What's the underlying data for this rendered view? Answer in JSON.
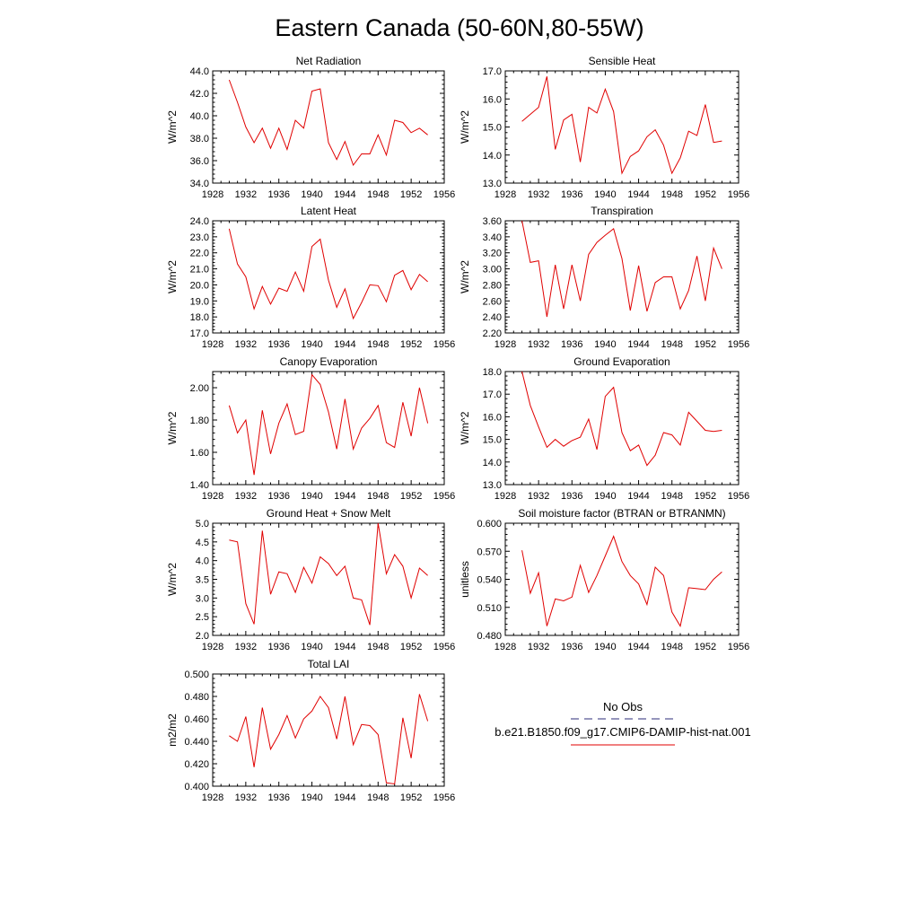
{
  "figure_title": "Eastern Canada (50-60N,80-55W)",
  "legend": {
    "entries": [
      {
        "label": "No Obs",
        "color": "#2b2b7a",
        "style": "dashed"
      },
      {
        "label": "b.e21.B1850.f09_g17.CMIP6-DAMIP-hist-nat.001",
        "color": "#e00000",
        "style": "solid"
      }
    ]
  },
  "chart_data": [
    {
      "type": "line",
      "title": "Net Radiation",
      "ylabel": "W/m^2",
      "xlim": [
        1928,
        1956
      ],
      "xticks": [
        1928,
        1932,
        1936,
        1940,
        1944,
        1948,
        1952,
        1956
      ],
      "ylim": [
        34,
        44
      ],
      "yticks": [
        34,
        36,
        38,
        40,
        42,
        44
      ],
      "ydecimals": 1,
      "series": [
        {
          "color": "#e00000",
          "x": [
            1930,
            1931,
            1932,
            1933,
            1934,
            1935,
            1936,
            1937,
            1938,
            1939,
            1940,
            1941,
            1942,
            1943,
            1944,
            1945,
            1946,
            1947,
            1948,
            1949,
            1950,
            1951,
            1952,
            1953,
            1954
          ],
          "values": [
            43.2,
            41.2,
            39.0,
            37.6,
            38.9,
            37.1,
            38.9,
            37.0,
            39.6,
            38.9,
            42.2,
            42.4,
            37.6,
            36.1,
            37.7,
            35.6,
            36.6,
            36.6,
            38.3,
            36.5,
            39.6,
            39.4,
            38.5,
            38.9,
            38.3
          ]
        }
      ]
    },
    {
      "type": "line",
      "title": "Sensible Heat",
      "ylabel": "W/m^2",
      "xlim": [
        1928,
        1956
      ],
      "xticks": [
        1928,
        1932,
        1936,
        1940,
        1944,
        1948,
        1952,
        1956
      ],
      "ylim": [
        13,
        17
      ],
      "yticks": [
        13,
        14,
        15,
        16,
        17
      ],
      "ydecimals": 1,
      "series": [
        {
          "color": "#e00000",
          "x": [
            1930,
            1931,
            1932,
            1933,
            1934,
            1935,
            1936,
            1937,
            1938,
            1939,
            1940,
            1941,
            1942,
            1943,
            1944,
            1945,
            1946,
            1947,
            1948,
            1949,
            1950,
            1951,
            1952,
            1953,
            1954
          ],
          "values": [
            15.2,
            15.45,
            15.7,
            16.8,
            14.2,
            15.25,
            15.45,
            13.75,
            15.7,
            15.5,
            16.35,
            15.55,
            13.35,
            13.95,
            14.15,
            14.65,
            14.9,
            14.35,
            13.35,
            13.9,
            14.85,
            14.7,
            15.8,
            14.45,
            14.5
          ]
        }
      ]
    },
    {
      "type": "line",
      "title": "Latent Heat",
      "ylabel": "W/m^2",
      "xlim": [
        1928,
        1956
      ],
      "xticks": [
        1928,
        1932,
        1936,
        1940,
        1944,
        1948,
        1952,
        1956
      ],
      "ylim": [
        17,
        24
      ],
      "yticks": [
        17,
        18,
        19,
        20,
        21,
        22,
        23,
        24
      ],
      "ydecimals": 1,
      "series": [
        {
          "color": "#e00000",
          "x": [
            1930,
            1931,
            1932,
            1933,
            1934,
            1935,
            1936,
            1937,
            1938,
            1939,
            1940,
            1941,
            1942,
            1943,
            1944,
            1945,
            1946,
            1947,
            1948,
            1949,
            1950,
            1951,
            1952,
            1953,
            1954
          ],
          "values": [
            23.5,
            21.3,
            20.5,
            18.5,
            19.9,
            18.8,
            19.8,
            19.6,
            20.8,
            19.6,
            22.4,
            22.85,
            20.3,
            18.6,
            19.75,
            17.9,
            18.9,
            20.0,
            19.95,
            18.95,
            20.6,
            20.9,
            19.7,
            20.65,
            20.2
          ]
        }
      ]
    },
    {
      "type": "line",
      "title": "Transpiration",
      "ylabel": "W/m^2",
      "xlim": [
        1928,
        1956
      ],
      "xticks": [
        1928,
        1932,
        1936,
        1940,
        1944,
        1948,
        1952,
        1956
      ],
      "ylim": [
        2.2,
        3.6
      ],
      "yticks": [
        2.2,
        2.4,
        2.6,
        2.8,
        3.0,
        3.2,
        3.4,
        3.6
      ],
      "ydecimals": 2,
      "series": [
        {
          "color": "#e00000",
          "x": [
            1930,
            1931,
            1932,
            1933,
            1934,
            1935,
            1936,
            1937,
            1938,
            1939,
            1940,
            1941,
            1942,
            1943,
            1944,
            1945,
            1946,
            1947,
            1948,
            1949,
            1950,
            1951,
            1952,
            1953,
            1954
          ],
          "values": [
            3.6,
            3.08,
            3.1,
            2.4,
            3.05,
            2.5,
            3.05,
            2.6,
            3.18,
            3.33,
            3.42,
            3.5,
            3.13,
            2.48,
            3.04,
            2.47,
            2.83,
            2.9,
            2.9,
            2.5,
            2.73,
            3.16,
            2.6,
            3.26,
            3.0
          ]
        }
      ]
    },
    {
      "type": "line",
      "title": "Canopy Evaporation",
      "ylabel": "W/m^2",
      "xlim": [
        1928,
        1956
      ],
      "xticks": [
        1928,
        1932,
        1936,
        1940,
        1944,
        1948,
        1952,
        1956
      ],
      "ylim": [
        1.4,
        2.1
      ],
      "yticks": [
        1.4,
        1.6,
        1.8,
        2.0
      ],
      "ydecimals": 2,
      "series": [
        {
          "color": "#e00000",
          "x": [
            1930,
            1931,
            1932,
            1933,
            1934,
            1935,
            1936,
            1937,
            1938,
            1939,
            1940,
            1941,
            1942,
            1943,
            1944,
            1945,
            1946,
            1947,
            1948,
            1949,
            1950,
            1951,
            1952,
            1953,
            1954
          ],
          "values": [
            1.89,
            1.72,
            1.8,
            1.46,
            1.86,
            1.59,
            1.78,
            1.9,
            1.71,
            1.73,
            2.08,
            2.02,
            1.85,
            1.62,
            1.93,
            1.62,
            1.75,
            1.81,
            1.89,
            1.66,
            1.63,
            1.91,
            1.7,
            2.0,
            1.78
          ]
        }
      ]
    },
    {
      "type": "line",
      "title": "Ground Evaporation",
      "ylabel": "W/m^2",
      "xlim": [
        1928,
        1956
      ],
      "xticks": [
        1928,
        1932,
        1936,
        1940,
        1944,
        1948,
        1952,
        1956
      ],
      "ylim": [
        13,
        18
      ],
      "yticks": [
        13,
        14,
        15,
        16,
        17,
        18
      ],
      "ydecimals": 1,
      "series": [
        {
          "color": "#e00000",
          "x": [
            1930,
            1931,
            1932,
            1933,
            1934,
            1935,
            1936,
            1937,
            1938,
            1939,
            1940,
            1941,
            1942,
            1943,
            1944,
            1945,
            1946,
            1947,
            1948,
            1949,
            1950,
            1951,
            1952,
            1953,
            1954
          ],
          "values": [
            18.0,
            16.5,
            15.55,
            14.65,
            15.0,
            14.7,
            14.95,
            15.1,
            15.9,
            14.55,
            16.9,
            17.3,
            15.3,
            14.5,
            14.75,
            13.85,
            14.3,
            15.3,
            15.2,
            14.75,
            16.2,
            15.8,
            15.4,
            15.35,
            15.4
          ]
        }
      ]
    },
    {
      "type": "line",
      "title": "Ground Heat + Snow Melt",
      "ylabel": "W/m^2",
      "xlim": [
        1928,
        1956
      ],
      "xticks": [
        1928,
        1932,
        1936,
        1940,
        1944,
        1948,
        1952,
        1956
      ],
      "ylim": [
        2.0,
        5.0
      ],
      "yticks": [
        2.0,
        2.5,
        3.0,
        3.5,
        4.0,
        4.5,
        5.0
      ],
      "ydecimals": 1,
      "series": [
        {
          "color": "#e00000",
          "x": [
            1930,
            1931,
            1932,
            1933,
            1934,
            1935,
            1936,
            1937,
            1938,
            1939,
            1940,
            1941,
            1942,
            1943,
            1944,
            1945,
            1946,
            1947,
            1948,
            1949,
            1950,
            1951,
            1952,
            1953,
            1954
          ],
          "values": [
            4.55,
            4.5,
            2.85,
            2.3,
            4.8,
            3.1,
            3.7,
            3.65,
            3.15,
            3.82,
            3.4,
            4.1,
            3.92,
            3.6,
            3.85,
            3.0,
            2.95,
            2.28,
            5.0,
            3.65,
            4.16,
            3.85,
            3.0,
            3.8,
            3.6
          ]
        }
      ]
    },
    {
      "type": "line",
      "title": "Soil moisture factor (BTRAN or BTRANMN)",
      "ylabel": "unitless",
      "xlim": [
        1928,
        1956
      ],
      "xticks": [
        1928,
        1932,
        1936,
        1940,
        1944,
        1948,
        1952,
        1956
      ],
      "ylim": [
        0.48,
        0.6
      ],
      "yticks": [
        0.48,
        0.51,
        0.54,
        0.57,
        0.6
      ],
      "ydecimals": 3,
      "series": [
        {
          "color": "#e00000",
          "x": [
            1930,
            1931,
            1932,
            1933,
            1934,
            1935,
            1936,
            1937,
            1938,
            1939,
            1940,
            1941,
            1942,
            1943,
            1944,
            1945,
            1946,
            1947,
            1948,
            1949,
            1950,
            1951,
            1952,
            1953,
            1954
          ],
          "values": [
            0.571,
            0.525,
            0.547,
            0.49,
            0.519,
            0.517,
            0.521,
            0.555,
            0.526,
            0.544,
            0.565,
            0.586,
            0.559,
            0.544,
            0.535,
            0.513,
            0.553,
            0.544,
            0.505,
            0.49,
            0.531,
            0.53,
            0.529,
            0.54,
            0.548
          ]
        }
      ]
    },
    {
      "type": "line",
      "title": "Total LAI",
      "ylabel": "m2/m2",
      "xlim": [
        1928,
        1956
      ],
      "xticks": [
        1928,
        1932,
        1936,
        1940,
        1944,
        1948,
        1952,
        1956
      ],
      "ylim": [
        0.4,
        0.5
      ],
      "yticks": [
        0.4,
        0.42,
        0.44,
        0.46,
        0.48,
        0.5
      ],
      "ydecimals": 3,
      "series": [
        {
          "color": "#e00000",
          "x": [
            1930,
            1931,
            1932,
            1933,
            1934,
            1935,
            1936,
            1937,
            1938,
            1939,
            1940,
            1941,
            1942,
            1943,
            1944,
            1945,
            1946,
            1947,
            1948,
            1949,
            1950,
            1951,
            1952,
            1953,
            1954
          ],
          "values": [
            0.445,
            0.44,
            0.462,
            0.417,
            0.47,
            0.433,
            0.446,
            0.463,
            0.443,
            0.46,
            0.467,
            0.48,
            0.47,
            0.442,
            0.48,
            0.437,
            0.455,
            0.454,
            0.446,
            0.403,
            0.402,
            0.461,
            0.425,
            0.482,
            0.458
          ]
        }
      ]
    }
  ]
}
